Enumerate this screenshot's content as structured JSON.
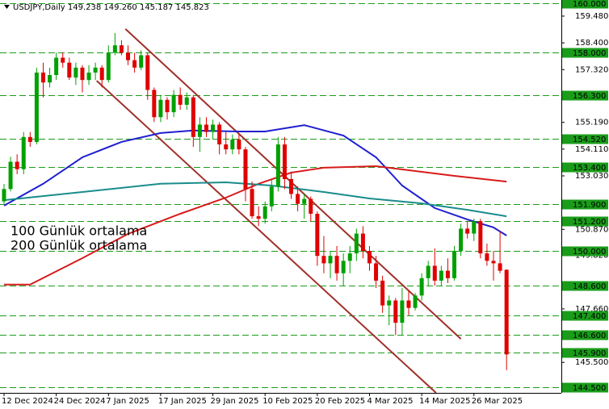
{
  "chart_data": {
    "type": "candlestick",
    "title": "USDJPY,Daily  149.238 149.260 145.187 145.823",
    "categories": [
      "12 Dec 2024",
      null,
      null,
      null,
      null,
      null,
      null,
      null,
      "24 Dec 2024",
      null,
      null,
      null,
      null,
      null,
      null,
      null,
      "7 Jan 2025",
      null,
      null,
      null,
      null,
      null,
      null,
      null,
      "17 Jan 2025",
      null,
      null,
      null,
      null,
      null,
      null,
      null,
      "29 Jan 2025",
      null,
      null,
      null,
      null,
      null,
      null,
      null,
      "10 Feb 2025",
      null,
      null,
      null,
      null,
      null,
      null,
      null,
      "20 Feb 2025",
      null,
      null,
      null,
      null,
      null,
      null,
      null,
      "4 Mar 2025",
      null,
      null,
      null,
      null,
      null,
      null,
      null,
      "14 Mar 2025",
      null,
      null,
      null,
      null,
      null,
      null,
      null,
      "26 Mar 2025",
      null,
      null,
      null,
      null,
      null
    ],
    "ohlc": [
      [
        152.0,
        152.7,
        151.9,
        152.5
      ],
      [
        152.5,
        153.8,
        152.4,
        153.6
      ],
      [
        153.6,
        153.9,
        153.1,
        153.3
      ],
      [
        153.3,
        154.8,
        153.1,
        154.6
      ],
      [
        154.6,
        154.8,
        154.2,
        154.4
      ],
      [
        154.4,
        157.4,
        154.3,
        157.2
      ],
      [
        157.2,
        157.6,
        156.2,
        156.8
      ],
      [
        156.8,
        157.4,
        156.6,
        157.1
      ],
      [
        157.1,
        158.0,
        156.9,
        157.8
      ],
      [
        157.8,
        158.0,
        157.4,
        157.6
      ],
      [
        157.6,
        157.8,
        156.9,
        157.0
      ],
      [
        157.0,
        157.6,
        156.7,
        157.4
      ],
      [
        157.4,
        157.5,
        156.4,
        156.9
      ],
      [
        156.9,
        157.5,
        156.7,
        157.2
      ],
      [
        157.2,
        157.6,
        156.9,
        157.4
      ],
      [
        157.4,
        157.5,
        156.6,
        156.9
      ],
      [
        156.9,
        158.3,
        156.8,
        158.0
      ],
      [
        158.0,
        158.8,
        157.9,
        158.3
      ],
      [
        158.3,
        158.5,
        157.9,
        158.0
      ],
      [
        158.0,
        158.3,
        157.5,
        157.7
      ],
      [
        157.7,
        158.0,
        157.2,
        157.4
      ],
      [
        157.4,
        158.1,
        157.3,
        157.9
      ],
      [
        157.9,
        158.0,
        156.1,
        156.5
      ],
      [
        156.5,
        156.6,
        155.2,
        155.4
      ],
      [
        155.4,
        156.3,
        155.2,
        156.1
      ],
      [
        156.1,
        156.2,
        155.3,
        155.6
      ],
      [
        155.6,
        156.5,
        155.4,
        156.3
      ],
      [
        156.3,
        156.6,
        155.7,
        155.9
      ],
      [
        155.9,
        156.4,
        155.7,
        156.2
      ],
      [
        156.2,
        156.3,
        154.2,
        154.6
      ],
      [
        154.6,
        155.4,
        154.0,
        155.1
      ],
      [
        155.1,
        155.4,
        154.6,
        154.8
      ],
      [
        154.8,
        155.3,
        154.5,
        155.1
      ],
      [
        155.1,
        155.2,
        153.9,
        154.3
      ],
      [
        154.3,
        154.8,
        153.9,
        154.1
      ],
      [
        154.1,
        154.7,
        153.9,
        154.5
      ],
      [
        154.5,
        154.7,
        153.9,
        154.1
      ],
      [
        154.1,
        154.2,
        152.0,
        152.5
      ],
      [
        152.5,
        152.8,
        151.3,
        151.4
      ],
      [
        151.4,
        151.8,
        151.0,
        151.3
      ],
      [
        151.3,
        152.0,
        151.1,
        151.8
      ],
      [
        151.8,
        152.9,
        151.6,
        152.6
      ],
      [
        152.6,
        154.6,
        152.4,
        154.3
      ],
      [
        154.3,
        154.6,
        152.5,
        152.9
      ],
      [
        152.9,
        153.2,
        152.1,
        152.3
      ],
      [
        152.3,
        152.6,
        151.6,
        151.9
      ],
      [
        151.9,
        152.3,
        151.3,
        152.1
      ],
      [
        152.1,
        152.2,
        151.2,
        151.5
      ],
      [
        151.5,
        151.6,
        149.4,
        149.8
      ],
      [
        149.8,
        150.6,
        149.1,
        149.5
      ],
      [
        149.5,
        150.0,
        148.9,
        149.8
      ],
      [
        149.8,
        150.2,
        148.8,
        149.1
      ],
      [
        149.1,
        149.9,
        148.6,
        149.6
      ],
      [
        149.6,
        150.2,
        149.1,
        149.9
      ],
      [
        149.9,
        150.9,
        149.6,
        150.7
      ],
      [
        150.7,
        151.0,
        149.7,
        150.0
      ],
      [
        150.0,
        150.2,
        149.2,
        149.5
      ],
      [
        149.5,
        149.8,
        148.5,
        148.8
      ],
      [
        148.8,
        149.0,
        147.5,
        147.8
      ],
      [
        147.8,
        148.2,
        147.0,
        148.0
      ],
      [
        148.0,
        148.1,
        146.6,
        147.1
      ],
      [
        147.1,
        148.5,
        146.6,
        148.0
      ],
      [
        148.0,
        148.4,
        147.4,
        147.7
      ],
      [
        147.7,
        148.3,
        147.6,
        148.2
      ],
      [
        148.2,
        149.1,
        148.0,
        148.9
      ],
      [
        148.9,
        149.6,
        148.6,
        149.4
      ],
      [
        149.4,
        150.1,
        148.6,
        148.8
      ],
      [
        148.8,
        149.4,
        148.6,
        149.2
      ],
      [
        149.2,
        149.7,
        148.7,
        148.9
      ],
      [
        148.9,
        150.2,
        148.8,
        150.0
      ],
      [
        150.0,
        151.1,
        149.8,
        150.9
      ],
      [
        150.9,
        151.2,
        150.5,
        150.7
      ],
      [
        150.7,
        151.3,
        150.4,
        151.2
      ],
      [
        151.2,
        151.3,
        149.7,
        149.9
      ],
      [
        149.9,
        150.3,
        149.4,
        149.6
      ],
      [
        149.6,
        150.0,
        148.8,
        149.5
      ],
      [
        149.5,
        150.8,
        149.1,
        149.2
      ],
      [
        149.238,
        149.26,
        145.187,
        145.823
      ]
    ],
    "up_color": "#00a000",
    "down_color": "#e00000",
    "ylim": [
      144.27,
      160.13
    ],
    "yticks": [
      {
        "value": 159.48,
        "label": "159.480"
      },
      {
        "value": 158.4,
        "label": "158.400"
      },
      {
        "value": 157.32,
        "label": "157.320"
      },
      {
        "value": 155.19,
        "label": "155.190"
      },
      {
        "value": 154.11,
        "label": "154.110"
      },
      {
        "value": 153.03,
        "label": "153.030"
      },
      {
        "value": 150.87,
        "label": "150.870"
      },
      {
        "value": 149.82,
        "label": "149.820"
      },
      {
        "value": 147.66,
        "label": "147.660"
      },
      {
        "value": 145.5,
        "label": "145.500"
      }
    ],
    "level_color": "#1a9c1a",
    "levels": [
      {
        "value": 160,
        "label": "160.000"
      },
      {
        "value": 158,
        "label": "158.000"
      },
      {
        "value": 156.3,
        "label": "156.300"
      },
      {
        "value": 154.52,
        "label": "154.520"
      },
      {
        "value": 153.4,
        "label": "153.400"
      },
      {
        "value": 151.9,
        "label": "151.900"
      },
      {
        "value": 151.2,
        "label": "151.200"
      },
      {
        "value": 150,
        "label": "150.000"
      },
      {
        "value": 148.6,
        "label": "148.600"
      },
      {
        "value": 147.4,
        "label": "147.400"
      },
      {
        "value": 146.6,
        "label": "146.600"
      },
      {
        "value": 145.9,
        "label": "145.900"
      },
      {
        "value": 144.5,
        "label": "144.500"
      }
    ],
    "overlays": [
      {
        "color": "#1f1fd0",
        "x": [
          0,
          6,
          12,
          18,
          24,
          29,
          36,
          40,
          46,
          52,
          57,
          61,
          66,
          71,
          75,
          77
        ],
        "values": [
          151.83,
          152.71,
          153.78,
          154.4,
          154.76,
          154.86,
          154.82,
          154.82,
          155.08,
          154.66,
          153.78,
          152.64,
          151.73,
          151.27,
          150.95,
          150.62
        ]
      },
      {
        "name": "100 Günlük ortalama",
        "color": "#d81b1b",
        "x": [
          0,
          4,
          12,
          19,
          27,
          34,
          39,
          44,
          49,
          57,
          61,
          69,
          77
        ],
        "values": [
          148.64,
          148.64,
          149.71,
          150.69,
          151.5,
          152.15,
          152.71,
          153.16,
          153.36,
          153.42,
          153.29,
          153.03,
          152.8
        ]
      },
      {
        "name": "200 Günlük ortalama",
        "color": "#1a8c8c",
        "x": [
          0,
          12,
          24,
          34,
          41,
          49,
          56,
          64,
          71,
          77
        ],
        "values": [
          152.05,
          152.38,
          152.71,
          152.77,
          152.64,
          152.38,
          152.12,
          151.92,
          151.66,
          151.4
        ]
      }
    ],
    "trendlines": [
      {
        "color": "#a0302a",
        "x": [
          18.6,
          70
        ],
        "values": [
          158.96,
          146.45
        ]
      },
      {
        "color": "#a0302a",
        "x": [
          14.2,
          66.2
        ],
        "values": [
          156.87,
          144.27
        ]
      }
    ]
  }
}
